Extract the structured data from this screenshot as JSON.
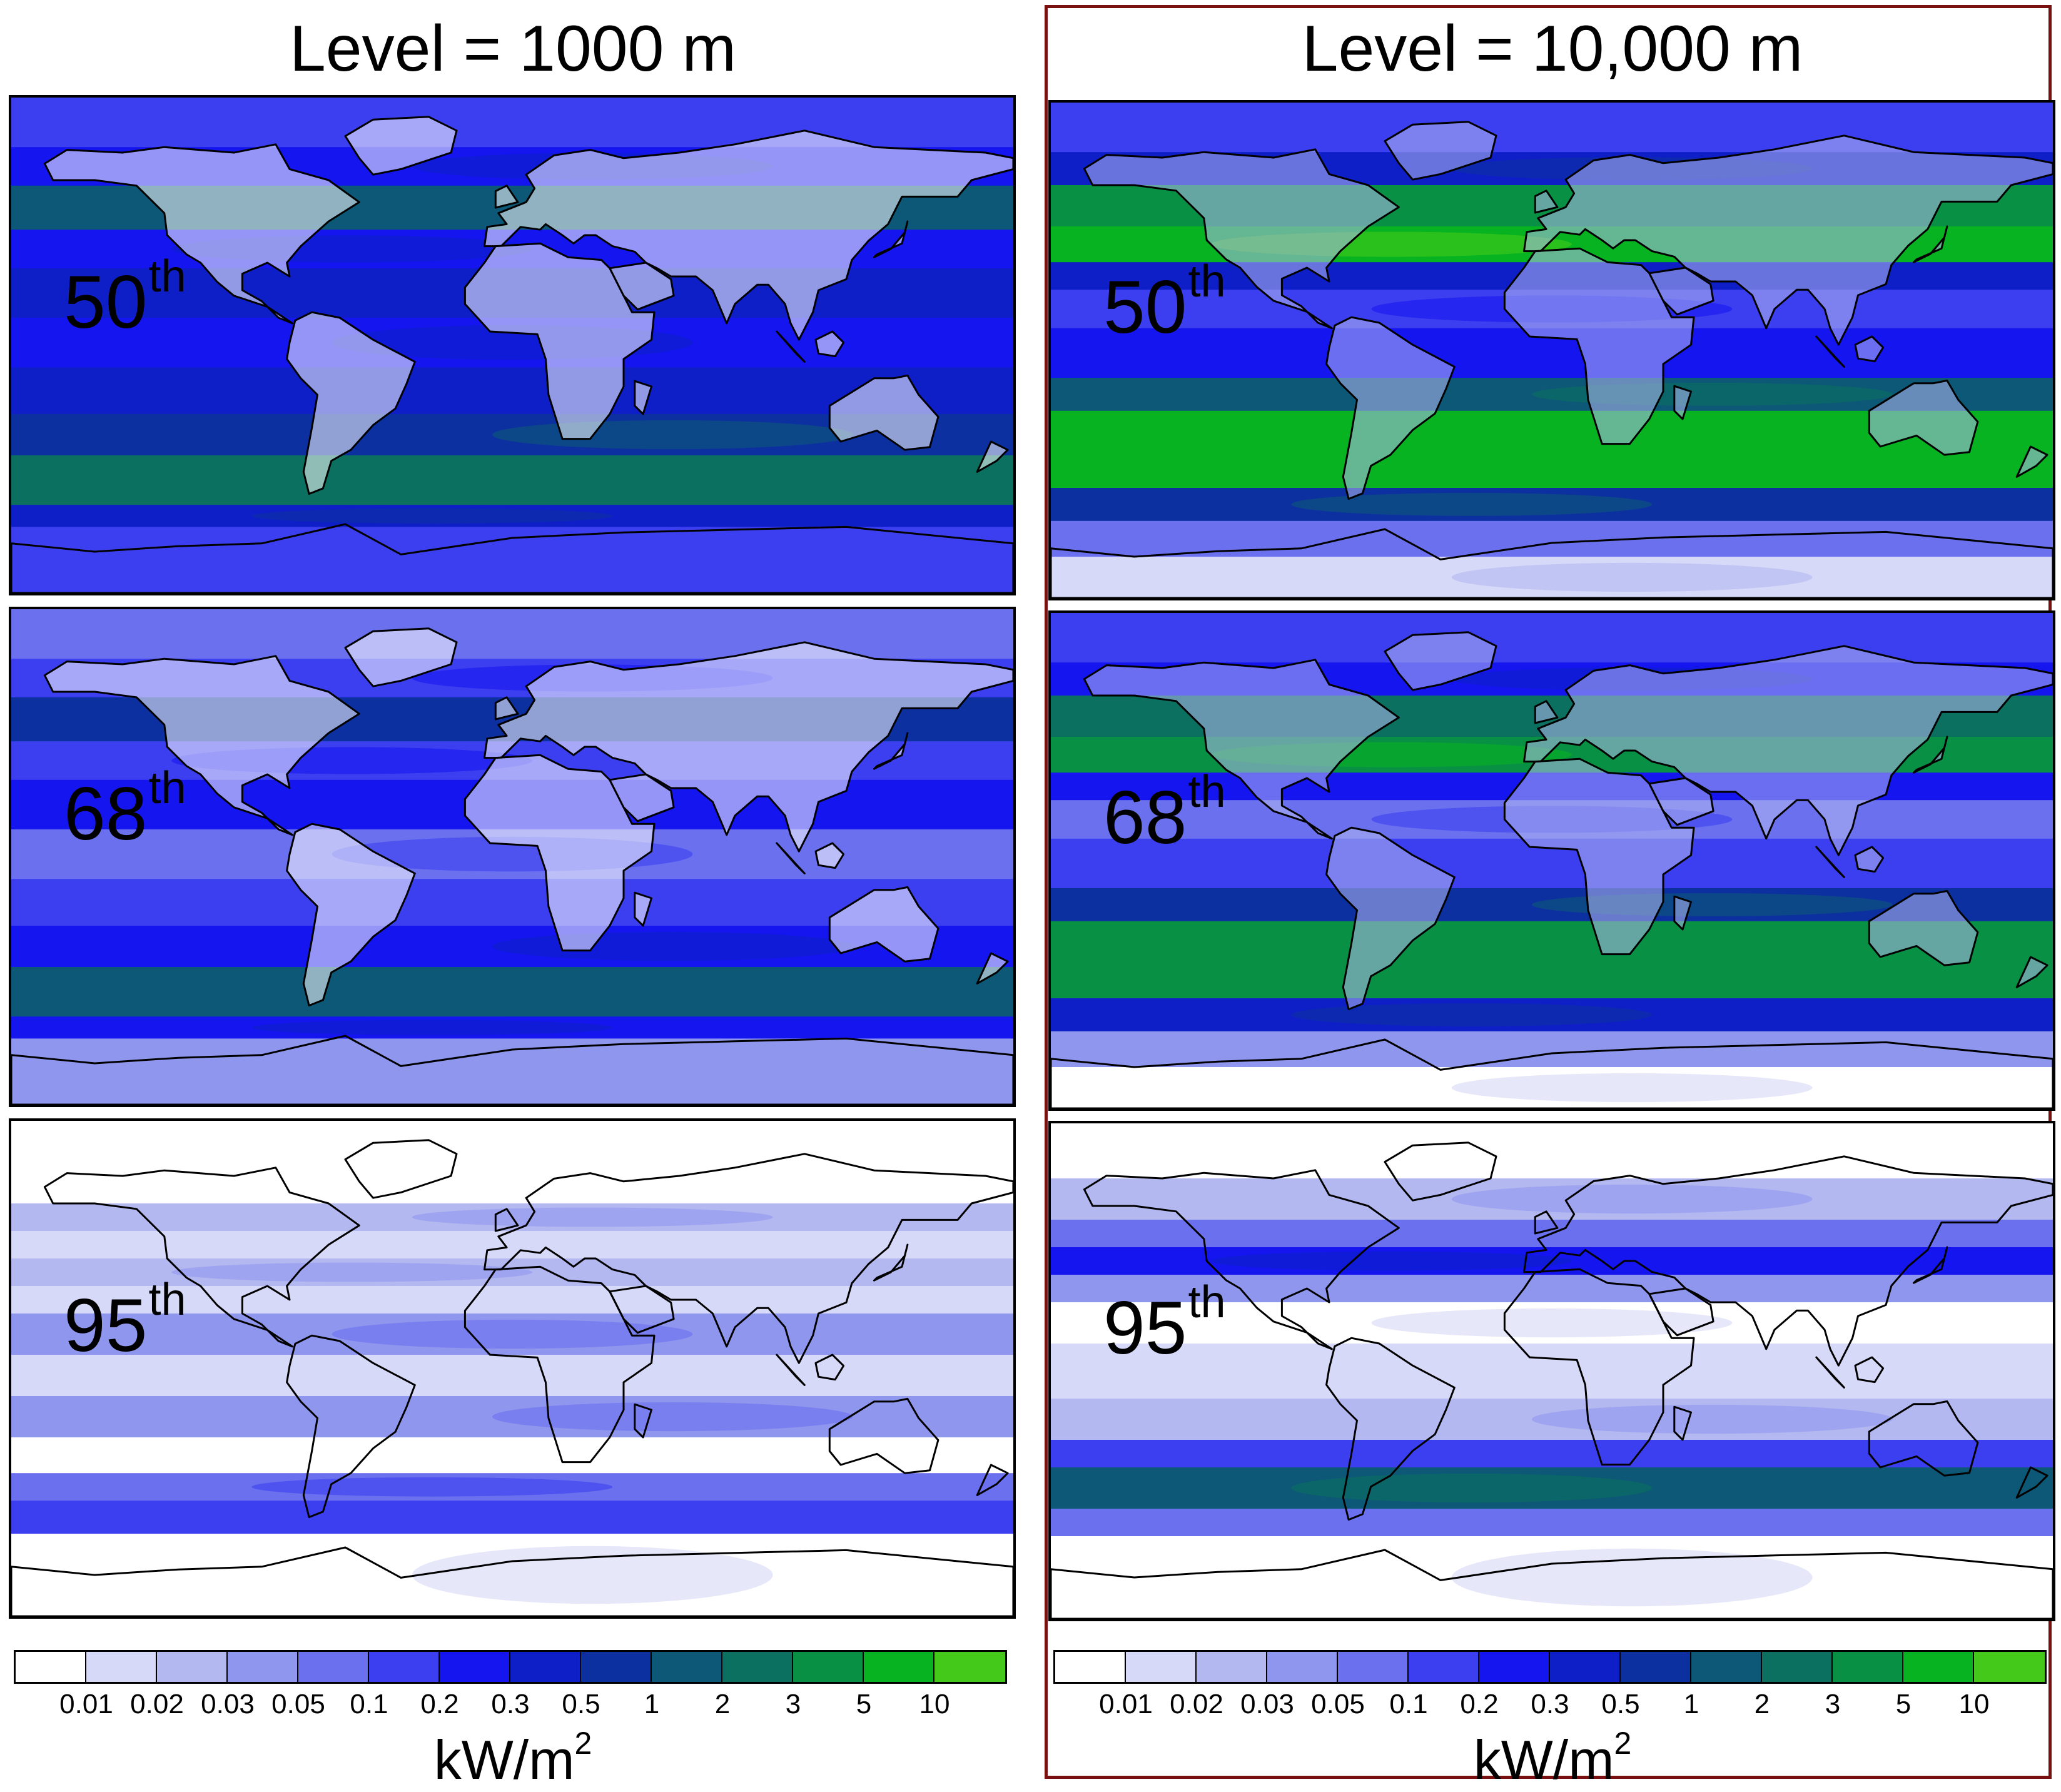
{
  "columns": [
    {
      "title": "Level = 1000 m",
      "panels": [
        {
          "percentile": "50",
          "suffix": "th",
          "scheme": "low50"
        },
        {
          "percentile": "68",
          "suffix": "th",
          "scheme": "low68"
        },
        {
          "percentile": "95",
          "suffix": "th",
          "scheme": "low95"
        }
      ]
    },
    {
      "title": "Level = 10,000 m",
      "panels": [
        {
          "percentile": "50",
          "suffix": "th",
          "scheme": "high50"
        },
        {
          "percentile": "68",
          "suffix": "th",
          "scheme": "high68"
        },
        {
          "percentile": "95",
          "suffix": "th",
          "scheme": "high95"
        }
      ]
    }
  ],
  "colorbar": {
    "colors": [
      "#ffffff",
      "#d6d9f7",
      "#b3b8f0",
      "#8f96ee",
      "#6a70ee",
      "#3c3ff0",
      "#1515ef",
      "#0e1fc8",
      "#0d30a0",
      "#0c5876",
      "#0b7060",
      "#089044",
      "#07b321",
      "#44c91a"
    ],
    "tick_labels": [
      "0.01",
      "0.02",
      "0.03",
      "0.05",
      "0.1",
      "0.2",
      "0.3",
      "0.5",
      "1",
      "2",
      "3",
      "5",
      "10"
    ],
    "units_base": "kW/m",
    "units_exp": "2"
  }
}
